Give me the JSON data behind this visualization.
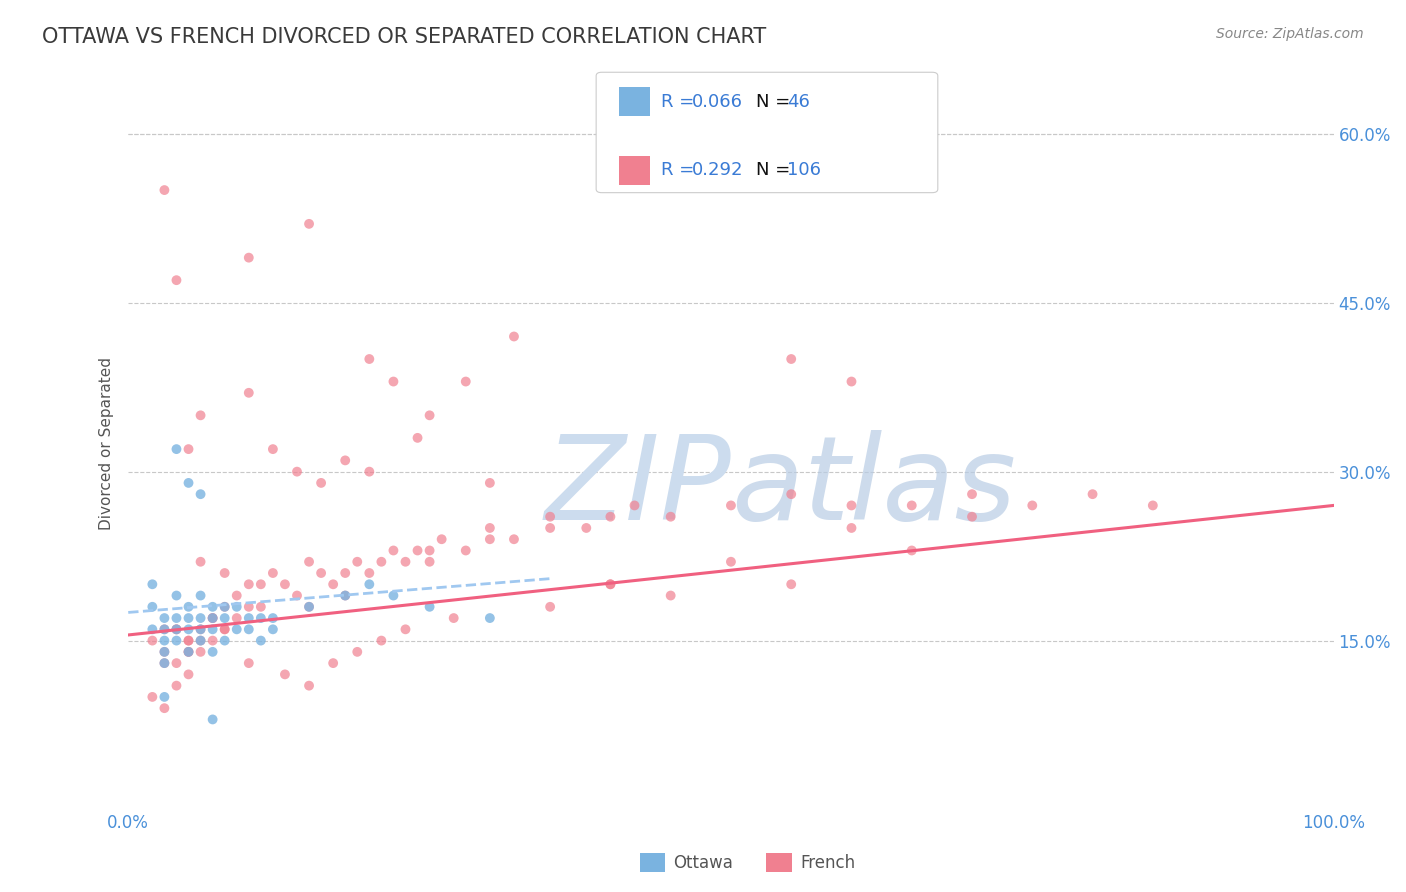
{
  "title": "OTTAWA VS FRENCH DIVORCED OR SEPARATED CORRELATION CHART",
  "source": "Source: ZipAtlas.com",
  "ylabel": "Divorced or Separated",
  "xlim": [
    0,
    1.0
  ],
  "ylim": [
    0,
    0.65
  ],
  "ytick_values": [
    0.15,
    0.3,
    0.45,
    0.6
  ],
  "xtick_labels": [
    "0.0%",
    "100.0%"
  ],
  "xtick_values": [
    0.0,
    1.0
  ],
  "bottom_legend": [
    "Ottawa",
    "French"
  ],
  "title_color": "#3a3a3a",
  "title_fontsize": 15,
  "ottawa_scatter_x": [
    0.02,
    0.02,
    0.02,
    0.03,
    0.03,
    0.03,
    0.03,
    0.03,
    0.03,
    0.04,
    0.04,
    0.04,
    0.04,
    0.05,
    0.05,
    0.05,
    0.05,
    0.06,
    0.06,
    0.06,
    0.06,
    0.07,
    0.07,
    0.07,
    0.07,
    0.08,
    0.08,
    0.08,
    0.09,
    0.09,
    0.1,
    0.1,
    0.11,
    0.11,
    0.12,
    0.12,
    0.15,
    0.18,
    0.04,
    0.05,
    0.06,
    0.07,
    0.2,
    0.22,
    0.25,
    0.3
  ],
  "ottawa_scatter_y": [
    0.2,
    0.18,
    0.16,
    0.17,
    0.16,
    0.15,
    0.14,
    0.13,
    0.1,
    0.19,
    0.17,
    0.16,
    0.15,
    0.18,
    0.17,
    0.16,
    0.14,
    0.19,
    0.17,
    0.16,
    0.15,
    0.18,
    0.17,
    0.16,
    0.14,
    0.18,
    0.17,
    0.15,
    0.18,
    0.16,
    0.17,
    0.16,
    0.17,
    0.15,
    0.17,
    0.16,
    0.18,
    0.19,
    0.32,
    0.29,
    0.28,
    0.08,
    0.2,
    0.19,
    0.18,
    0.17
  ],
  "french_scatter_x": [
    0.02,
    0.03,
    0.04,
    0.04,
    0.05,
    0.05,
    0.05,
    0.06,
    0.06,
    0.07,
    0.07,
    0.08,
    0.08,
    0.09,
    0.09,
    0.1,
    0.1,
    0.11,
    0.11,
    0.12,
    0.13,
    0.14,
    0.15,
    0.15,
    0.16,
    0.17,
    0.18,
    0.18,
    0.19,
    0.2,
    0.21,
    0.22,
    0.23,
    0.24,
    0.25,
    0.26,
    0.28,
    0.3,
    0.32,
    0.35,
    0.38,
    0.4,
    0.42,
    0.45,
    0.5,
    0.55,
    0.6,
    0.65,
    0.7,
    0.75,
    0.8,
    0.85,
    0.1,
    0.12,
    0.14,
    0.16,
    0.18,
    0.2,
    0.22,
    0.24,
    0.28,
    0.32,
    0.25,
    0.3,
    0.35,
    0.4,
    0.08,
    0.1,
    0.13,
    0.15,
    0.17,
    0.19,
    0.21,
    0.23,
    0.27,
    0.55,
    0.6,
    0.1,
    0.15,
    0.2,
    0.25,
    0.3,
    0.35,
    0.4,
    0.45,
    0.5,
    0.55,
    0.6,
    0.65,
    0.7,
    0.06,
    0.08,
    0.03,
    0.04,
    0.05,
    0.03,
    0.04,
    0.02,
    0.03,
    0.05,
    0.06,
    0.07,
    0.04,
    0.03,
    0.05,
    0.06
  ],
  "french_scatter_y": [
    0.15,
    0.14,
    0.13,
    0.16,
    0.15,
    0.14,
    0.12,
    0.16,
    0.14,
    0.17,
    0.15,
    0.18,
    0.16,
    0.19,
    0.17,
    0.2,
    0.18,
    0.2,
    0.18,
    0.21,
    0.2,
    0.19,
    0.22,
    0.18,
    0.21,
    0.2,
    0.21,
    0.19,
    0.22,
    0.21,
    0.22,
    0.23,
    0.22,
    0.23,
    0.23,
    0.24,
    0.23,
    0.25,
    0.24,
    0.26,
    0.25,
    0.26,
    0.27,
    0.26,
    0.27,
    0.28,
    0.27,
    0.27,
    0.28,
    0.27,
    0.28,
    0.27,
    0.37,
    0.32,
    0.3,
    0.29,
    0.31,
    0.4,
    0.38,
    0.33,
    0.38,
    0.42,
    0.35,
    0.29,
    0.25,
    0.2,
    0.16,
    0.13,
    0.12,
    0.11,
    0.13,
    0.14,
    0.15,
    0.16,
    0.17,
    0.4,
    0.38,
    0.49,
    0.52,
    0.3,
    0.22,
    0.24,
    0.18,
    0.2,
    0.19,
    0.22,
    0.2,
    0.25,
    0.23,
    0.26,
    0.22,
    0.21,
    0.55,
    0.47,
    0.14,
    0.13,
    0.11,
    0.1,
    0.09,
    0.15,
    0.15,
    0.17,
    0.16,
    0.16,
    0.32,
    0.35
  ],
  "ottawa_trendline_x": [
    0.0,
    0.35
  ],
  "ottawa_trendline_y": [
    0.175,
    0.205
  ],
  "french_trendline_x": [
    0.0,
    1.0
  ],
  "french_trendline_y": [
    0.155,
    0.27
  ],
  "scatter_color_ottawa": "#7ab3e0",
  "scatter_color_french": "#f08090",
  "trendline_color_ottawa": "#a0c8f0",
  "trendline_color_french": "#f06080",
  "grid_color": "#c8c8c8",
  "background_color": "#ffffff",
  "legend_text_color": "#3a7bd5",
  "top_dashed_line_y": 0.6,
  "legend_R1": "0.066",
  "legend_N1": "46",
  "legend_R2": "0.292",
  "legend_N2": "106"
}
